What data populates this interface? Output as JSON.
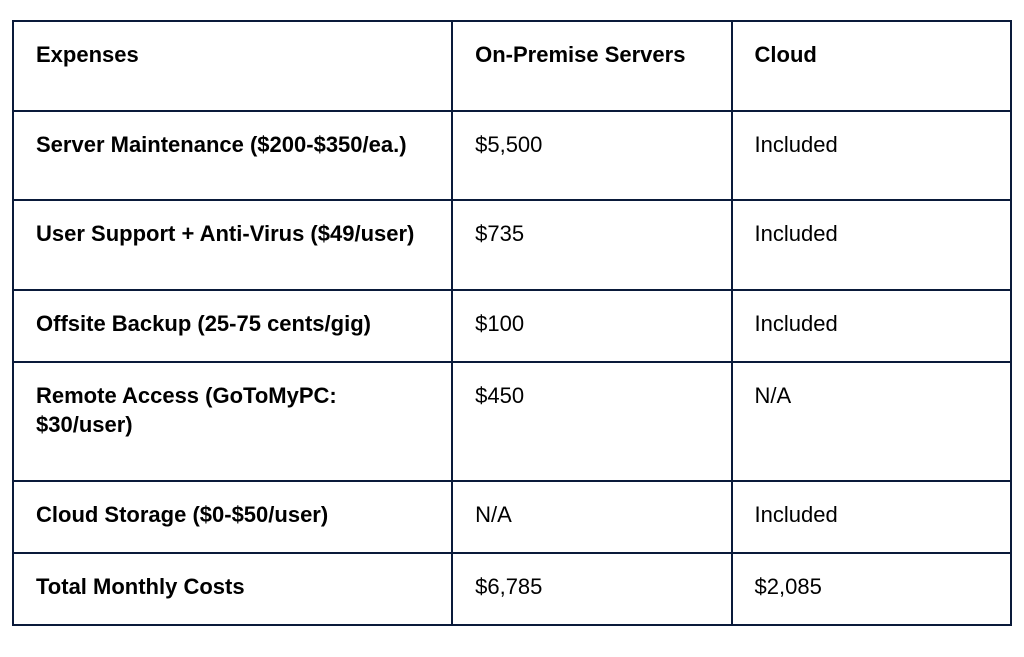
{
  "table": {
    "type": "table",
    "border_color": "#0a1a3a",
    "background_color": "#ffffff",
    "text_color": "#000000",
    "font_family": "Arial, Helvetica, sans-serif",
    "header_fontsize": 22,
    "cell_fontsize": 22,
    "header_fontweight": 700,
    "expense_col_fontweight": 700,
    "value_col_fontweight": 400,
    "border_width": 2,
    "column_widths_pct": [
      44,
      28,
      28
    ],
    "columns": [
      "Expenses",
      "On-Premise Servers",
      "Cloud"
    ],
    "rows": [
      {
        "label": "Server Maintenance ($200-$350/ea.)",
        "on_premise": "$5,500",
        "cloud": "Included"
      },
      {
        "label": "User Support + Anti-Virus ($49/user)",
        "on_premise": "$735",
        "cloud": "Included"
      },
      {
        "label": "Offsite Backup (25-75 cents/gig)",
        "on_premise": "$100",
        "cloud": "Included"
      },
      {
        "label": "Remote Access (GoToMyPC: $30/user)",
        "on_premise": "$450",
        "cloud": "N/A"
      },
      {
        "label": "Cloud Storage ($0-$50/user)",
        "on_premise": "N/A",
        "cloud": "Included"
      },
      {
        "label": "Total Monthly Costs",
        "on_premise": "$6,785",
        "cloud": "$2,085"
      }
    ]
  }
}
